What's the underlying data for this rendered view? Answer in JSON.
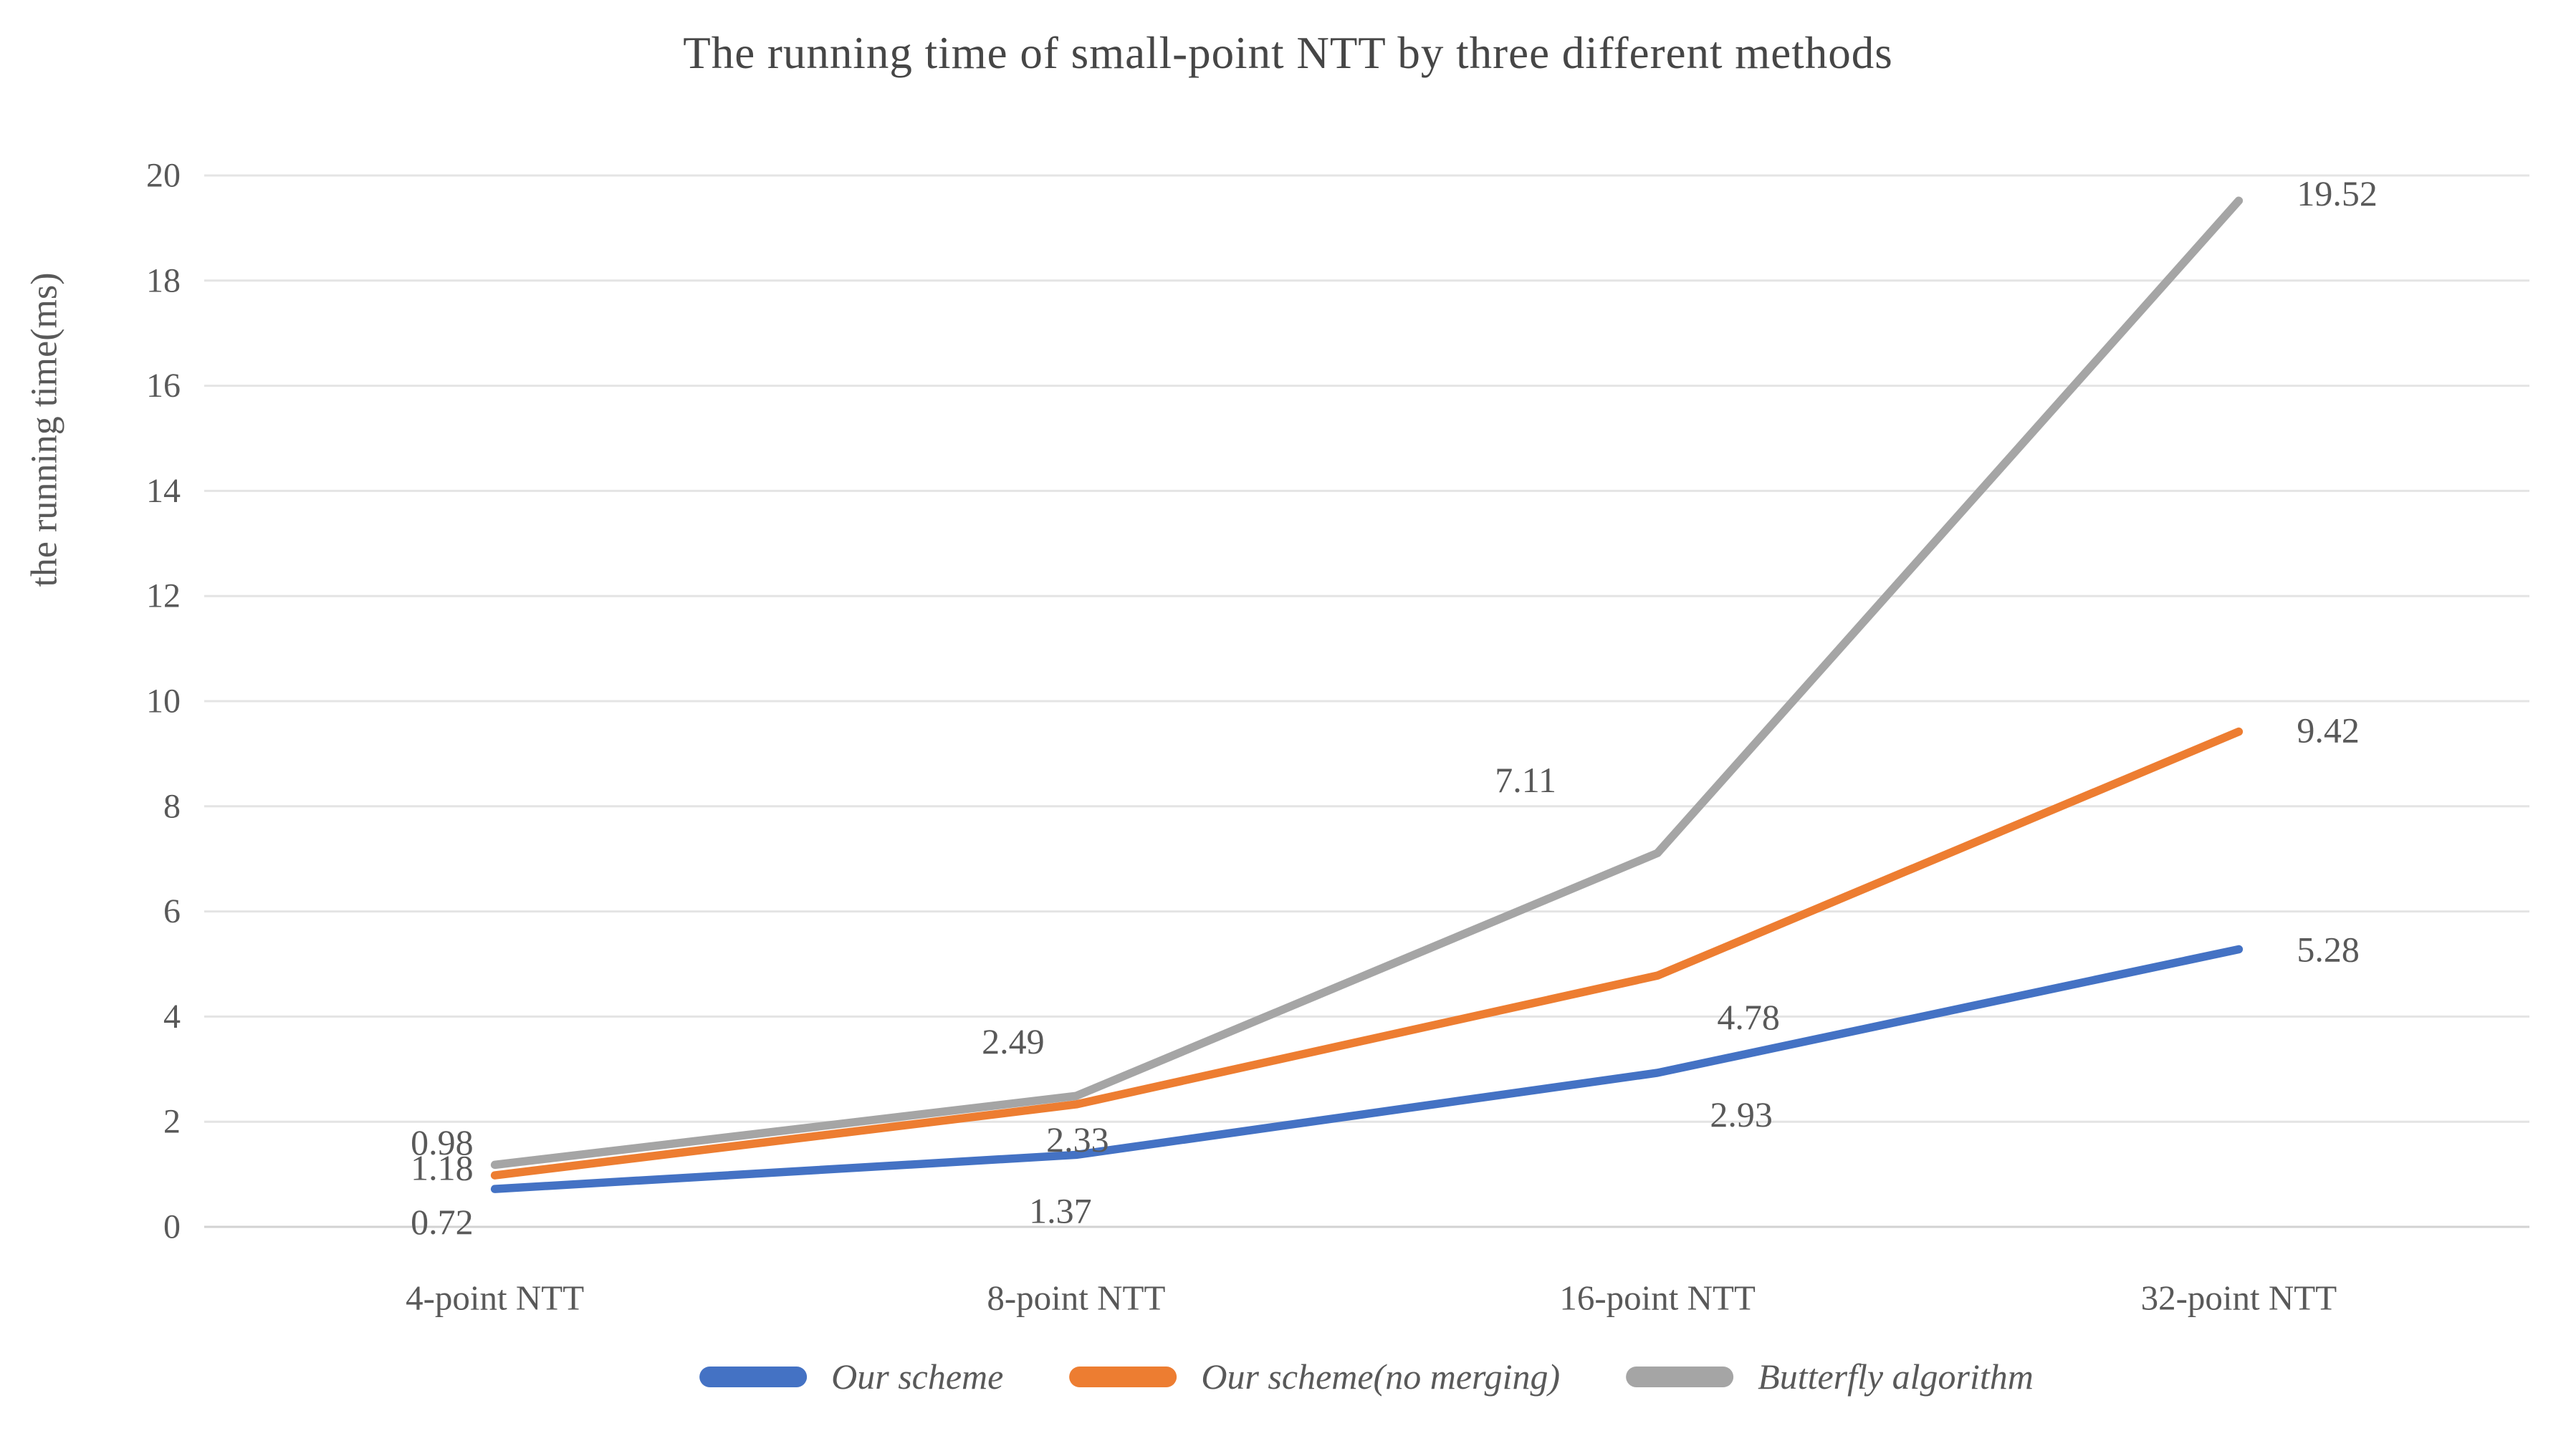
{
  "chart_data": {
    "type": "line",
    "title": "The running time of small-point NTT by three different methods",
    "ylabel": "the running time(ms)",
    "xlabel": "",
    "categories": [
      "4-point NTT",
      "8-point NTT",
      "16-point NTT",
      "32-point NTT"
    ],
    "series": [
      {
        "name": "Our scheme",
        "color": "#4472C4",
        "values": [
          0.72,
          1.37,
          2.93,
          5.28
        ]
      },
      {
        "name": "Our scheme(no merging)",
        "color": "#ED7D31",
        "values": [
          0.98,
          2.33,
          4.78,
          9.42
        ]
      },
      {
        "name": "Butterfly algorithm",
        "color": "#A5A5A5",
        "values": [
          1.18,
          2.49,
          7.11,
          19.52
        ]
      }
    ],
    "ylim": [
      0,
      20
    ],
    "ytick_step": 2,
    "ytick_labels": [
      "0",
      "2",
      "4",
      "6",
      "8",
      "10",
      "12",
      "14",
      "16",
      "18",
      "20"
    ],
    "grid": true,
    "data_labels": true,
    "legend_position": "bottom",
    "colors": {
      "gridline": "#E4E4E4",
      "baseline": "#D2D2D2",
      "axis_text": "#595959",
      "data_label_text": "#595959",
      "title_text": "#464646"
    }
  }
}
